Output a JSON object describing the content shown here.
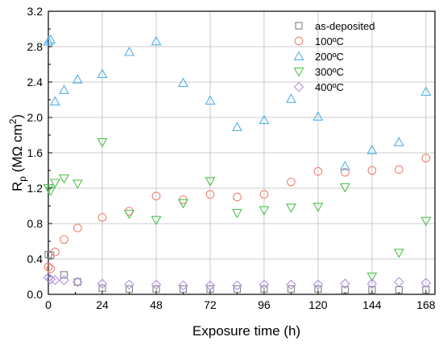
{
  "chart_data": {
    "type": "scatter",
    "xlabel": "Exposure time (h)",
    "ylabel": {
      "main": "R",
      "sub": "p",
      "unit": " (MΩ cm",
      "sup": "2",
      "close": ")"
    },
    "xlim": [
      0,
      172
    ],
    "ylim": [
      0,
      3.2
    ],
    "xticks": [
      "0",
      "24",
      "48",
      "72",
      "96",
      "120",
      "144",
      "168"
    ],
    "yticks": [
      "0.0",
      "0.4",
      "0.8",
      "1.2",
      "1.6",
      "2.0",
      "2.4",
      "2.8",
      "3.2"
    ],
    "grid": true,
    "legend_position": "top-right",
    "series": [
      {
        "name": "as-deposited",
        "marker": "square",
        "color": "#808080",
        "x": [
          0,
          1,
          7,
          13,
          24,
          36,
          48,
          60,
          72,
          84,
          96,
          108,
          120,
          132,
          144,
          156,
          168
        ],
        "y": [
          0.45,
          0.44,
          0.22,
          0.14,
          0.07,
          0.06,
          0.06,
          0.06,
          0.06,
          0.06,
          0.06,
          0.06,
          0.06,
          0.05,
          0.05,
          0.05,
          0.05
        ]
      },
      {
        "name": "100ºC",
        "marker": "circle",
        "color": "#f08070",
        "x": [
          0,
          1,
          3,
          7,
          13,
          24,
          36,
          48,
          60,
          72,
          84,
          96,
          108,
          120,
          132,
          144,
          156,
          168
        ],
        "y": [
          0.31,
          0.29,
          0.48,
          0.62,
          0.75,
          0.87,
          0.94,
          1.11,
          1.07,
          1.13,
          1.1,
          1.13,
          1.27,
          1.39,
          1.38,
          1.4,
          1.41,
          1.54
        ]
      },
      {
        "name": "200ºC",
        "marker": "triangle-up",
        "color": "#4eb0e8",
        "x": [
          0,
          1,
          3,
          7,
          13,
          24,
          36,
          48,
          60,
          72,
          84,
          96,
          108,
          120,
          132,
          144,
          156,
          168
        ],
        "y": [
          2.86,
          2.88,
          2.18,
          2.31,
          2.43,
          2.49,
          2.74,
          2.86,
          2.39,
          2.19,
          1.89,
          1.97,
          2.21,
          2.01,
          1.45,
          1.63,
          1.72,
          2.29
        ]
      },
      {
        "name": "300ºC",
        "marker": "triangle-down",
        "color": "#4ec24e",
        "x": [
          0,
          1,
          3,
          7,
          13,
          24,
          36,
          48,
          60,
          72,
          84,
          96,
          108,
          120,
          132,
          144,
          156,
          168
        ],
        "y": [
          1.2,
          1.17,
          1.26,
          1.31,
          1.25,
          1.72,
          0.91,
          0.84,
          1.03,
          1.28,
          0.92,
          0.95,
          0.98,
          0.99,
          1.21,
          0.2,
          0.47,
          0.83
        ]
      },
      {
        "name": "400ºC",
        "marker": "diamond",
        "color": "#b090e0",
        "x": [
          0,
          1,
          3,
          7,
          13,
          24,
          36,
          48,
          60,
          72,
          84,
          96,
          108,
          120,
          132,
          144,
          156,
          168
        ],
        "y": [
          0.19,
          0.17,
          0.16,
          0.16,
          0.14,
          0.12,
          0.11,
          0.11,
          0.1,
          0.1,
          0.1,
          0.11,
          0.11,
          0.11,
          0.12,
          0.12,
          0.14,
          0.13
        ]
      }
    ]
  }
}
